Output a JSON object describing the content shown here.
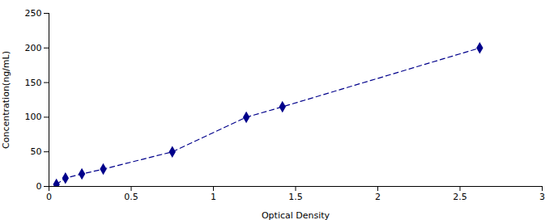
{
  "chart_data": {
    "type": "line",
    "x": [
      0.045,
      0.1,
      0.2,
      0.33,
      0.75,
      1.2,
      1.42,
      2.62
    ],
    "values": [
      3,
      12,
      18,
      25,
      50,
      100,
      115,
      200
    ],
    "color": "#00008B",
    "marker": "diamond",
    "line_style": "dashed",
    "xlabel": "Optical Density",
    "ylabel": "Concentration(ng/mL)",
    "xlim": [
      0,
      3
    ],
    "ylim": [
      0,
      250
    ],
    "xticks": [
      0,
      0.5,
      1,
      1.5,
      2,
      2.5,
      3
    ],
    "yticks": [
      0,
      50,
      100,
      150,
      200,
      250
    ],
    "grid": false
  }
}
